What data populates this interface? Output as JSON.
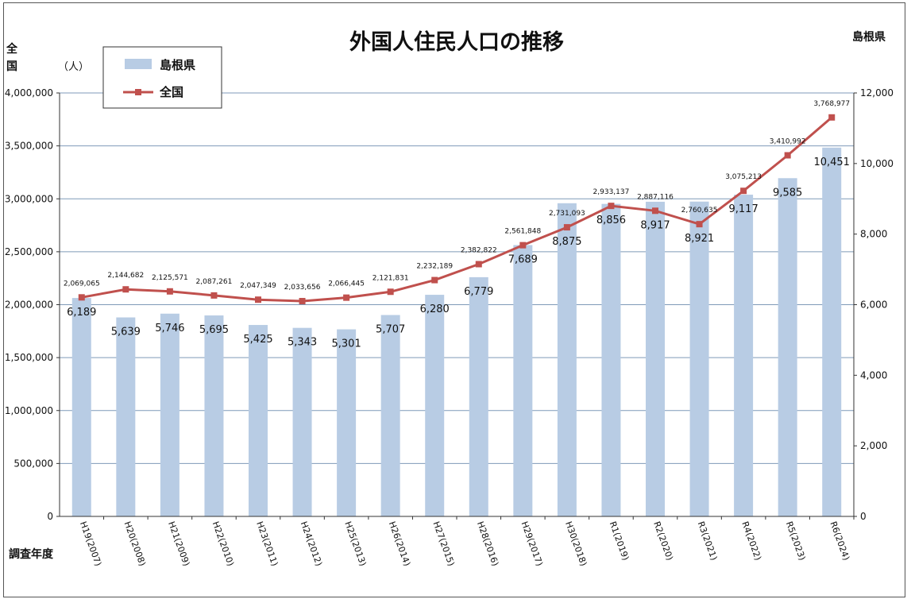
{
  "title": "外国人住民人口の推移",
  "region_label": "島根県",
  "left_axis_title": [
    "全",
    "国"
  ],
  "unit_label": "（人）",
  "xlabel": "調査年度",
  "legend": [
    {
      "label": "島根県",
      "type": "bar"
    },
    {
      "label": "全国",
      "type": "line"
    }
  ],
  "chart_data": {
    "type": "bar",
    "title": "外国人住民人口の推移",
    "xlabel": "調査年度",
    "categories": [
      "H19(2007)",
      "H20(2008)",
      "H21(2009)",
      "H22(2010)",
      "H23(2011)",
      "H24(2012)",
      "H25(2013)",
      "H26(2014)",
      "H27(2015)",
      "H28(2016)",
      "H29(2017)",
      "H30(2018)",
      "R1(2019)",
      "R2(2020)",
      "R3(2021)",
      "R4(2022)",
      "R5(2023)",
      "R6(2024)"
    ],
    "series": [
      {
        "name": "島根県",
        "type": "bar",
        "axis": "right",
        "values": [
          6189,
          5639,
          5746,
          5695,
          5425,
          5343,
          5301,
          5707,
          6280,
          6779,
          7689,
          8875,
          8856,
          8917,
          8921,
          9117,
          9585,
          10451
        ],
        "labels": [
          "6,189",
          "5,639",
          "5,746",
          "5,695",
          "5,425",
          "5,343",
          "5,301",
          "5,707",
          "6,280",
          "6,779",
          "7,689",
          "8,875",
          "8,856",
          "8,917",
          "8,921",
          "9,117",
          "9,585",
          "10,451"
        ]
      },
      {
        "name": "全国",
        "type": "line",
        "axis": "left",
        "values": [
          2069065,
          2144682,
          2125571,
          2087261,
          2047349,
          2033656,
          2066445,
          2121831,
          2232189,
          2382822,
          2561848,
          2731093,
          2933137,
          2887116,
          2760635,
          3075213,
          3410992,
          3768977
        ],
        "labels": [
          "2,069,065",
          "2,144,682",
          "2,125,571",
          "2,087,261",
          "2,047,349",
          "2,033,656",
          "2,066,445",
          "2,121,831",
          "2,232,189",
          "2,382,822",
          "2,561,848",
          "2,731,093",
          "2,933,137",
          "2,887,116",
          "2,760,635",
          "3,075,213",
          "3,410,992",
          "3,768,977"
        ]
      }
    ],
    "left_axis": {
      "min": 0,
      "max": 4000000,
      "ticks": [
        "0",
        "500,000",
        "1,000,000",
        "1,500,000",
        "2,000,000",
        "2,500,000",
        "3,000,000",
        "3,500,000",
        "4,000,000"
      ]
    },
    "right_axis": {
      "min": 0,
      "max": 12000,
      "ticks": [
        "0",
        "2,000",
        "4,000",
        "6,000",
        "8,000",
        "10,000",
        "12,000"
      ]
    },
    "grid": true,
    "colors": {
      "bar": "#b8cce4",
      "line": "#c0504d",
      "grid": "#7f9ab8"
    }
  }
}
